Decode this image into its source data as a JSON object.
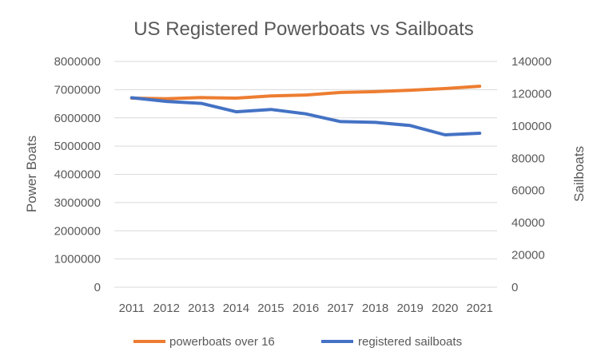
{
  "chart_data": {
    "type": "line",
    "title": "US Registered Powerboats vs Sailboats",
    "x": [
      "2011",
      "2012",
      "2013",
      "2014",
      "2015",
      "2016",
      "2017",
      "2018",
      "2019",
      "2020",
      "2021"
    ],
    "series": [
      {
        "name": "powerboats over 16",
        "axis": "left",
        "color": "#ED7D31",
        "values": [
          6700000,
          6680000,
          6720000,
          6700000,
          6780000,
          6810000,
          6900000,
          6930000,
          6980000,
          7040000,
          7120000
        ]
      },
      {
        "name": "registered sailboats",
        "axis": "right",
        "color": "#4472C4",
        "values": [
          117500,
          115200,
          114000,
          108800,
          110200,
          107500,
          102700,
          102200,
          100300,
          94500,
          95500
        ]
      }
    ],
    "ylabel": "Power Boats",
    "y2label": "Sailboats",
    "ylim": [
      0,
      8000000
    ],
    "y2lim": [
      0,
      140000
    ],
    "yticks": [
      "0",
      "1000000",
      "2000000",
      "3000000",
      "4000000",
      "5000000",
      "6000000",
      "7000000",
      "8000000"
    ],
    "y2ticks": [
      "0",
      "20000",
      "40000",
      "60000",
      "80000",
      "100000",
      "120000",
      "140000"
    ],
    "grid": true,
    "legend": "bottom"
  }
}
